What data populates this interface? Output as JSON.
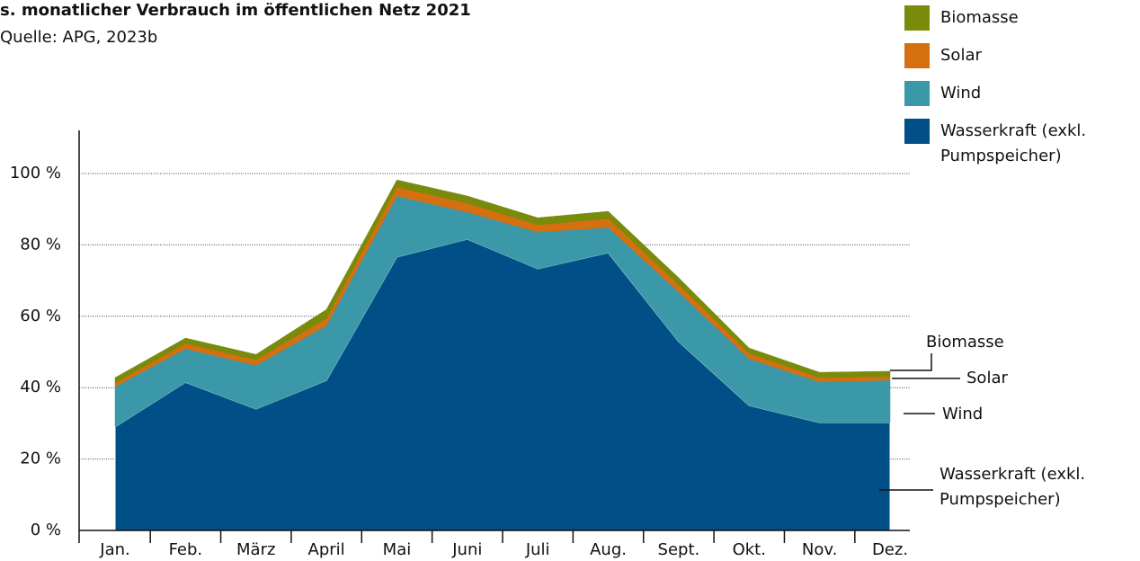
{
  "chart_data": {
    "type": "stacked-area",
    "title": "s. monatlicher Verbrauch im öffentlichen Netz 2021",
    "subtitle": "Quelle: APG, 2023b",
    "categories": [
      "Jan.",
      "Feb.",
      "März",
      "April",
      "Mai",
      "Juni",
      "Juli",
      "Aug.",
      "Sept.",
      "Okt.",
      "Nov.",
      "Dez."
    ],
    "series": [
      {
        "name": "Wasserkraft (exkl. Pumpspeicher)",
        "color": "#004f87",
        "values": [
          29,
          41.5,
          34,
          42,
          76.6,
          81.6,
          73.3,
          77.8,
          52.9,
          35,
          30.2,
          30.2
        ]
      },
      {
        "name": "Wind",
        "color": "#3a98a8",
        "values": [
          11.3,
          9.4,
          12.3,
          15.4,
          17.1,
          7.6,
          10.3,
          7.1,
          13.9,
          13.1,
          11.4,
          11.9
        ]
      },
      {
        "name": "Solar",
        "color": "#d4700f",
        "values": [
          1,
          1.5,
          1.5,
          2,
          2.5,
          2.5,
          2,
          2.5,
          2,
          1.5,
          1.2,
          1
        ]
      },
      {
        "name": "Biomasse",
        "color": "#7a8a0a",
        "values": [
          1.5,
          1.5,
          1.5,
          2.5,
          2,
          2,
          2,
          2,
          2,
          1.5,
          1.5,
          1.5
        ]
      }
    ],
    "ylim": [
      0,
      112
    ],
    "yticks": [
      {
        "value": 0,
        "label": "0 %"
      },
      {
        "value": 20,
        "label": "20 %"
      },
      {
        "value": 40,
        "label": "40 %"
      },
      {
        "value": 60,
        "label": "60 %"
      },
      {
        "value": 80,
        "label": "80 %"
      },
      {
        "value": 100,
        "label": "100 %"
      }
    ],
    "grid": true
  }
}
